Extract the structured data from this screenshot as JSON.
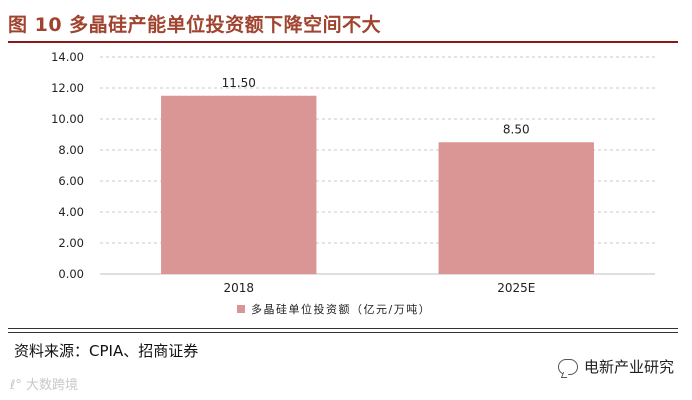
{
  "figure": {
    "title": "图 10  多晶硅产能单位投资额下降空间不大",
    "source": "资料来源：CPIA、招商证券",
    "watermark_left": "大数跨境",
    "watermark_right": "电新产业研究"
  },
  "colors": {
    "title": "#a0432f",
    "bar": "#d99694",
    "rule": "#8b1a1a"
  },
  "chart_data": {
    "type": "bar",
    "categories": [
      "2018",
      "2025E"
    ],
    "series": [
      {
        "name": "多晶硅单位投资额（亿元/万吨）",
        "values": [
          11.5,
          8.5
        ]
      }
    ],
    "data_labels": [
      "11.50",
      "8.50"
    ],
    "y_ticks": [
      "0.00",
      "2.00",
      "4.00",
      "6.00",
      "8.00",
      "10.00",
      "12.00",
      "14.00"
    ],
    "ylim": [
      0,
      14
    ],
    "grid": true,
    "legend": "bottom"
  }
}
